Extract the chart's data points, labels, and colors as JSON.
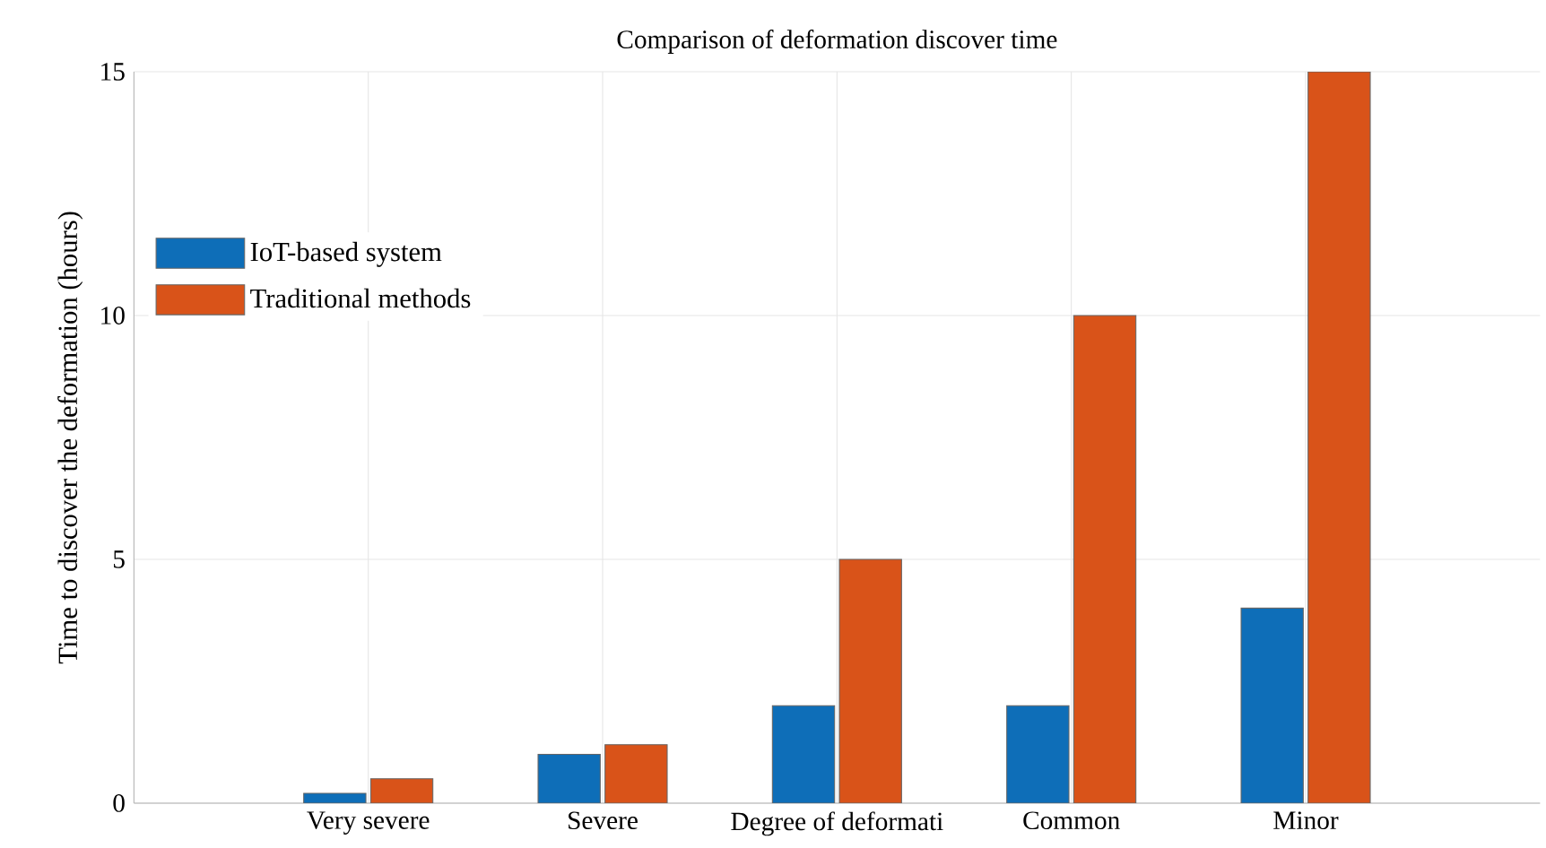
{
  "chart_data": {
    "type": "bar",
    "title": "Comparison of deformation discover time",
    "ylabel": "Time to discover the deformation (hours)",
    "categories": [
      "Very severe",
      "Severe",
      "Degree of deformati",
      "Common",
      "Minor"
    ],
    "series": [
      {
        "name": "IoT-based system",
        "color": "#0e6eb8",
        "values": [
          0.2,
          1.0,
          2.0,
          2.0,
          4.0
        ]
      },
      {
        "name": "Traditional methods",
        "color": "#d95319",
        "values": [
          0.5,
          1.2,
          5,
          10,
          15
        ]
      }
    ],
    "ylim": [
      0,
      15
    ],
    "yticks": [
      0,
      5,
      10,
      15
    ],
    "grid": true,
    "legend": "left"
  }
}
